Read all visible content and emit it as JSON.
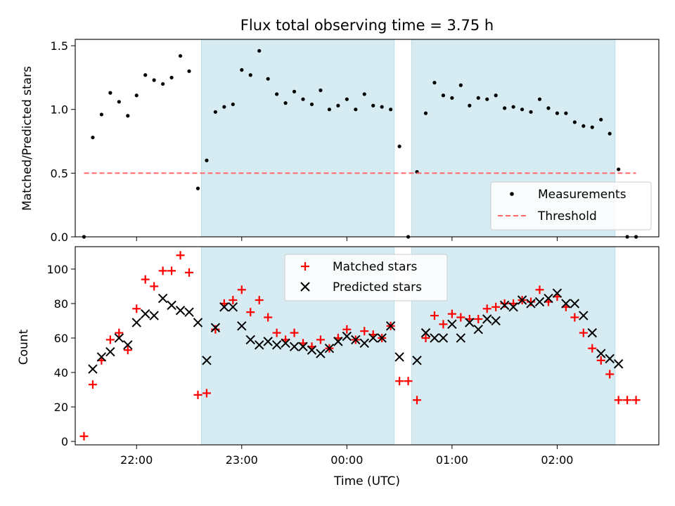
{
  "chart_data": [
    {
      "type": "scatter",
      "title": "Flux total observing time = 3.75 h",
      "xlabel": "",
      "ylabel": "Matched/Predicted stars",
      "x_unit": "time (UTC)",
      "xlim": [
        "21:25",
        "24:00+02:58"
      ],
      "ylim": [
        0,
        1.55
      ],
      "yticks": [
        0.0,
        0.5,
        1.0,
        1.5
      ],
      "ytick_labels": [
        "0.0",
        "0.5",
        "1.0",
        "1.5"
      ],
      "xticks": [
        "22:00",
        "23:00",
        "00:00",
        "01:00",
        "02:00"
      ],
      "shaded_intervals": [
        [
          "22:37",
          "00:27"
        ],
        [
          "00:37",
          "02:33"
        ]
      ],
      "legend_position": "lower-right",
      "series": [
        {
          "name": "Measurements",
          "marker": "dot",
          "color": "#000000",
          "x": [
            "21:30",
            "21:35",
            "21:40",
            "21:45",
            "21:50",
            "21:55",
            "22:00",
            "22:05",
            "22:10",
            "22:15",
            "22:20",
            "22:25",
            "22:30",
            "22:35",
            "22:40",
            "22:45",
            "22:50",
            "22:55",
            "23:00",
            "23:05",
            "23:10",
            "23:15",
            "23:20",
            "23:25",
            "23:30",
            "23:35",
            "23:40",
            "23:45",
            "23:50",
            "23:55",
            "00:00",
            "00:05",
            "00:10",
            "00:15",
            "00:20",
            "00:25",
            "00:30",
            "00:35",
            "00:40",
            "00:45",
            "00:50",
            "00:55",
            "01:00",
            "01:05",
            "01:10",
            "01:15",
            "01:20",
            "01:25",
            "01:30",
            "01:35",
            "01:40",
            "01:45",
            "01:50",
            "01:55",
            "02:00",
            "02:05",
            "02:10",
            "02:15",
            "02:20",
            "02:25",
            "02:30",
            "02:35",
            "02:40",
            "02:45"
          ],
          "y": [
            0.0,
            0.78,
            0.96,
            1.13,
            1.06,
            0.95,
            1.11,
            1.27,
            1.23,
            1.2,
            1.25,
            1.42,
            1.3,
            0.38,
            0.6,
            0.98,
            1.02,
            1.04,
            1.31,
            1.27,
            1.46,
            1.24,
            1.12,
            1.05,
            1.14,
            1.08,
            1.04,
            1.15,
            1.0,
            1.03,
            1.08,
            1.0,
            1.12,
            1.03,
            1.02,
            1.0,
            0.71,
            0.0,
            0.51,
            0.97,
            1.21,
            1.11,
            1.09,
            1.19,
            1.03,
            1.09,
            1.08,
            1.11,
            1.01,
            1.02,
            1.0,
            0.98,
            1.08,
            1.01,
            0.97,
            0.97,
            0.9,
            0.87,
            0.86,
            0.92,
            0.81,
            0.53,
            0.0,
            0.0
          ]
        },
        {
          "name": "Threshold",
          "style": "dashed",
          "color": "#ff6666",
          "x": [
            "21:30",
            "02:45"
          ],
          "y": [
            0.5,
            0.5
          ]
        }
      ]
    },
    {
      "type": "scatter",
      "title": "",
      "xlabel": "Time (UTC)",
      "ylabel": "Count",
      "xlim": [
        "21:25",
        "24:00+02:58"
      ],
      "ylim": [
        -2,
        113
      ],
      "yticks": [
        0,
        20,
        40,
        60,
        80,
        100
      ],
      "ytick_labels": [
        "0",
        "20",
        "40",
        "60",
        "80",
        "100"
      ],
      "xticks": [
        "22:00",
        "23:00",
        "00:00",
        "01:00",
        "02:00"
      ],
      "shaded_intervals": [
        [
          "22:37",
          "00:27"
        ],
        [
          "00:37",
          "02:33"
        ]
      ],
      "legend_position": "upper-center",
      "series": [
        {
          "name": "Matched stars",
          "marker": "plus",
          "color": "#ff0000",
          "x": [
            "21:30",
            "21:35",
            "21:40",
            "21:45",
            "21:50",
            "21:55",
            "22:00",
            "22:05",
            "22:10",
            "22:15",
            "22:20",
            "22:25",
            "22:30",
            "22:35",
            "22:40",
            "22:45",
            "22:50",
            "22:55",
            "23:00",
            "23:05",
            "23:10",
            "23:15",
            "23:20",
            "23:25",
            "23:30",
            "23:35",
            "23:40",
            "23:45",
            "23:50",
            "23:55",
            "00:00",
            "00:05",
            "00:10",
            "00:15",
            "00:20",
            "00:25",
            "00:30",
            "00:35",
            "00:40",
            "00:45",
            "00:50",
            "00:55",
            "01:00",
            "01:05",
            "01:10",
            "01:15",
            "01:20",
            "01:25",
            "01:30",
            "01:35",
            "01:40",
            "01:45",
            "01:50",
            "01:55",
            "02:00",
            "02:05",
            "02:10",
            "02:15",
            "02:20",
            "02:25",
            "02:30",
            "02:35",
            "02:40",
            "02:45"
          ],
          "y": [
            3,
            33,
            47,
            59,
            63,
            53,
            77,
            94,
            90,
            99,
            99,
            108,
            98,
            27,
            28,
            65,
            80,
            82,
            88,
            75,
            82,
            72,
            63,
            59,
            63,
            57,
            55,
            59,
            54,
            60,
            65,
            59,
            64,
            62,
            60,
            67,
            35,
            35,
            24,
            60,
            73,
            68,
            74,
            72,
            71,
            71,
            77,
            78,
            80,
            80,
            82,
            81,
            88,
            81,
            84,
            78,
            72,
            63,
            54,
            47,
            39,
            24,
            24,
            24
          ]
        },
        {
          "name": "Predicted stars",
          "marker": "x",
          "color": "#000000",
          "x": [
            "21:35",
            "21:40",
            "21:45",
            "21:50",
            "21:55",
            "22:00",
            "22:05",
            "22:10",
            "22:15",
            "22:20",
            "22:25",
            "22:30",
            "22:35",
            "22:40",
            "22:45",
            "22:50",
            "22:55",
            "23:00",
            "23:05",
            "23:10",
            "23:15",
            "23:20",
            "23:25",
            "23:30",
            "23:35",
            "23:40",
            "23:45",
            "23:50",
            "23:55",
            "00:00",
            "00:05",
            "00:10",
            "00:15",
            "00:20",
            "00:25",
            "00:30",
            "00:40",
            "00:45",
            "00:50",
            "00:55",
            "01:00",
            "01:05",
            "01:10",
            "01:15",
            "01:20",
            "01:25",
            "01:30",
            "01:35",
            "01:40",
            "01:45",
            "01:50",
            "01:55",
            "02:00",
            "02:05",
            "02:10",
            "02:15",
            "02:20",
            "02:25",
            "02:30",
            "02:35"
          ],
          "y": [
            42,
            49,
            52,
            60,
            56,
            69,
            74,
            73,
            83,
            79,
            76,
            75,
            69,
            47,
            66,
            78,
            78,
            67,
            59,
            56,
            58,
            56,
            57,
            55,
            55,
            53,
            51,
            54,
            58,
            61,
            59,
            57,
            60,
            60,
            67,
            49,
            47,
            63,
            60,
            60,
            68,
            60,
            69,
            65,
            71,
            70,
            79,
            78,
            82,
            80,
            81,
            83,
            86,
            80,
            80,
            73,
            63,
            51,
            48,
            45
          ]
        }
      ]
    }
  ]
}
